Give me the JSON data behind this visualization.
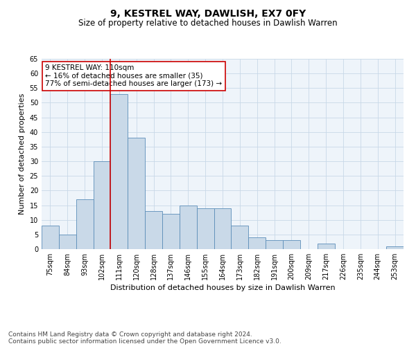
{
  "title1": "9, KESTREL WAY, DAWLISH, EX7 0FY",
  "title2": "Size of property relative to detached houses in Dawlish Warren",
  "xlabel": "Distribution of detached houses by size in Dawlish Warren",
  "ylabel": "Number of detached properties",
  "categories": [
    "75sqm",
    "84sqm",
    "93sqm",
    "102sqm",
    "111sqm",
    "120sqm",
    "128sqm",
    "137sqm",
    "146sqm",
    "155sqm",
    "164sqm",
    "173sqm",
    "182sqm",
    "191sqm",
    "200sqm",
    "209sqm",
    "217sqm",
    "226sqm",
    "235sqm",
    "244sqm",
    "253sqm"
  ],
  "values": [
    8,
    5,
    17,
    30,
    53,
    38,
    13,
    12,
    15,
    14,
    14,
    8,
    4,
    3,
    3,
    0,
    2,
    0,
    0,
    0,
    1
  ],
  "bar_color": "#c9d9e8",
  "bar_edge_color": "#5b8db8",
  "vline_index": 4,
  "vline_color": "#cc0000",
  "annotation_text": "9 KESTREL WAY: 110sqm\n← 16% of detached houses are smaller (35)\n77% of semi-detached houses are larger (173) →",
  "annotation_box_facecolor": "#ffffff",
  "annotation_box_edgecolor": "#cc0000",
  "ylim": [
    0,
    65
  ],
  "yticks": [
    0,
    5,
    10,
    15,
    20,
    25,
    30,
    35,
    40,
    45,
    50,
    55,
    60,
    65
  ],
  "grid_color": "#c8d8e8",
  "bg_color": "#eef4fa",
  "footer1": "Contains HM Land Registry data © Crown copyright and database right 2024.",
  "footer2": "Contains public sector information licensed under the Open Government Licence v3.0.",
  "title1_fontsize": 10,
  "title2_fontsize": 8.5,
  "xlabel_fontsize": 8,
  "ylabel_fontsize": 8,
  "tick_fontsize": 7,
  "annotation_fontsize": 7.5,
  "footer_fontsize": 6.5
}
